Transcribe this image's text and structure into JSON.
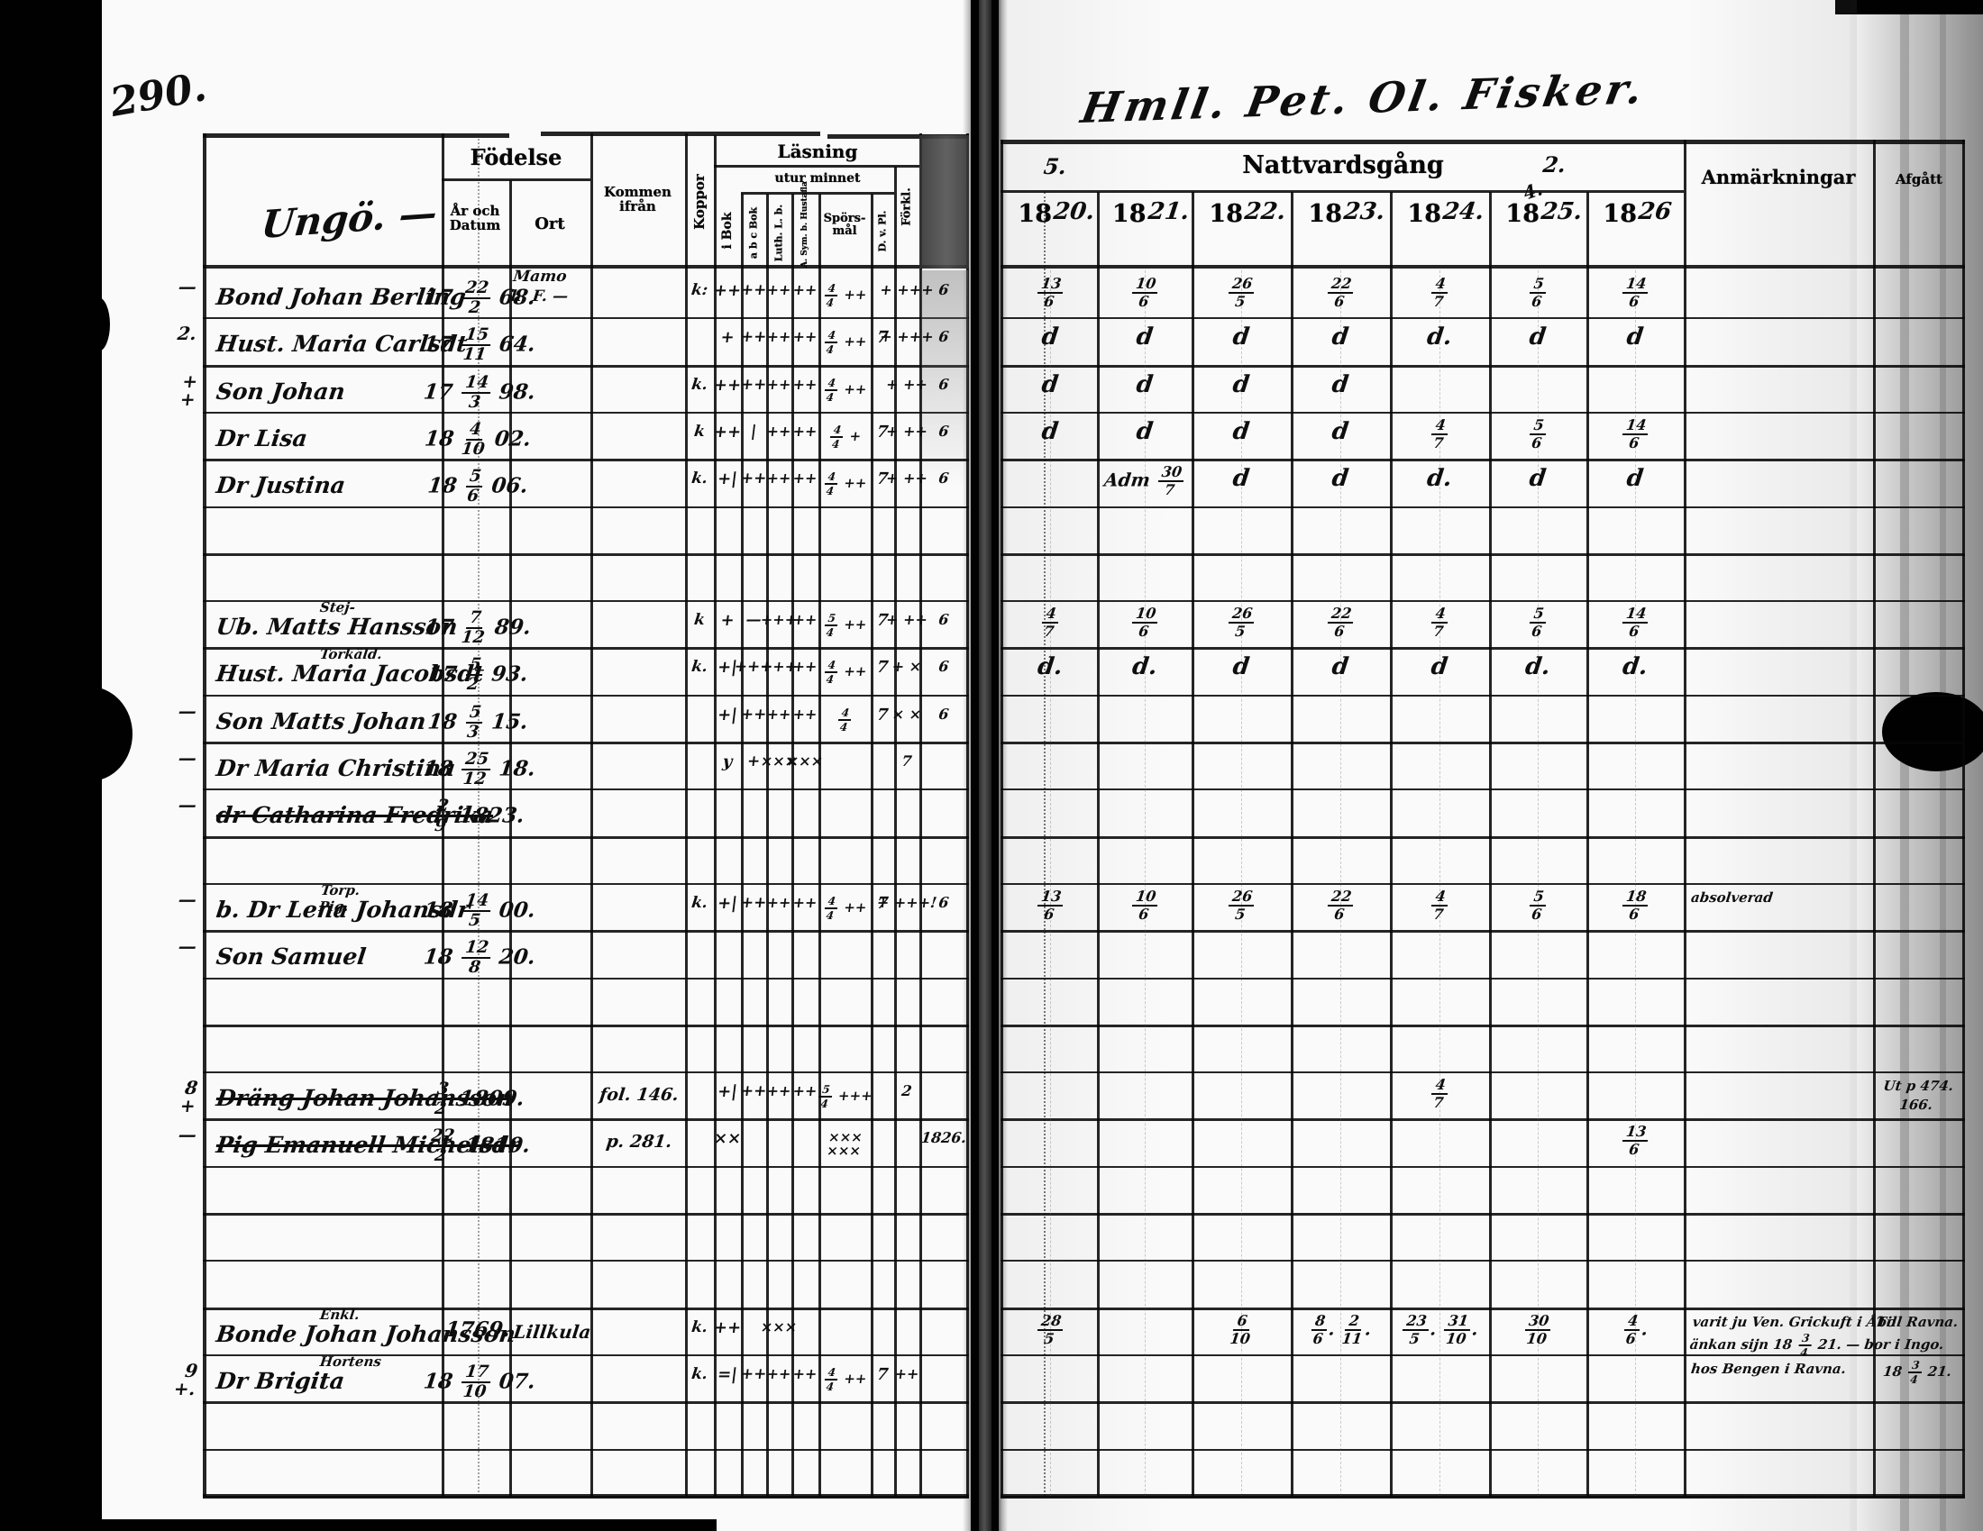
{
  "page": {
    "number": "290.",
    "left_heading": "Ungö. —",
    "right_heading": "Hmll. Pet. Ol. Fisker."
  },
  "ink_color": "#0d0c0a",
  "paper_color": "#f7f5ef",
  "left_table": {
    "headers": {
      "fodelse": "Födelse",
      "ar_och_datum": "År och\nDatum",
      "ort": "Ort",
      "kommen_ifran": "Kommen\nifrån",
      "koppor": "Koppor",
      "lasning": "Läsning",
      "utur_minnet": "utur minnet",
      "i_bok": "i Bok",
      "abc_bok": "a b c Bok",
      "luth": "Luth. L. b.",
      "asym": "A. Sym. b. Hustafla",
      "sporsmal": "Spörs-\nmål",
      "dvpl": "D. v. Pl.",
      "forkl": "Förkl."
    },
    "ort_note": "Mamo\nh. F. —",
    "rows": [
      {
        "margin": "—",
        "name": "Bond Johan Berling",
        "date": "17 22/2 68.",
        "marks": {
          "koppor": "k:",
          "ibok": "++",
          "abc": "++",
          "luth": "++",
          "asym": "++",
          "spors": "4/4 ++",
          "forkl": "+ +++",
          "shaded": "6"
        }
      },
      {
        "margin": "2.",
        "name": "Hust. Maria Carlsdt",
        "date": "17 15/11 64.",
        "marks": {
          "ibok": "+",
          "abc": "++",
          "luth": "++",
          "asym": "++",
          "spors": "4/4 ++",
          "dvpl": "7",
          "forkl": "+ +++",
          "shaded": "6"
        }
      },
      {
        "margin": "+\n+",
        "name": "Son Johan",
        "date": "17 14/3 98.",
        "marks": {
          "koppor": "k.",
          "ibok": "++",
          "abc": "++",
          "luth": "++",
          "asym": "++",
          "spors": "4/4 ++",
          "forkl": "+ ++",
          "shaded": "6"
        }
      },
      {
        "name": "Dr Lisa",
        "date": "18 4/10 02.",
        "marks": {
          "koppor": "k",
          "ibok": "++",
          "abc": "|",
          "luth": "++",
          "asym": "++",
          "spors": "4/4 +",
          "dvpl": "7",
          "forkl": "+ ++",
          "shaded": "6"
        }
      },
      {
        "name": "Dr Justina",
        "date": "18 5/6 06.",
        "marks": {
          "koppor": "k.",
          "ibok": "+|",
          "abc": "++",
          "luth": "++",
          "asym": "++",
          "spors": "4/4 ++",
          "dvpl": "7",
          "forkl": "+ ++",
          "shaded": "6"
        }
      },
      {},
      {},
      {
        "name": "Ub. Matts Hansson",
        "super": "Stej-",
        "date": "17 7/12 89.",
        "marks": {
          "koppor": "k",
          "ibok": "+",
          "abc": "—",
          "luth": "+++",
          "asym": "++",
          "spors": "5/4 ++",
          "dvpl": "7",
          "forkl": "+ ++",
          "shaded": "6"
        }
      },
      {
        "name": "Hust. Maria Jacobsdt",
        "super": "Torkäld.",
        "date": "17 5/2 93.",
        "marks": {
          "koppor": "k.",
          "ibok": "+|",
          "abc": "+++",
          "luth": "+++",
          "asym": "++",
          "spors": "4/4 ++",
          "dvpl": "7",
          "forkl": "+ ×",
          "shaded": "6"
        }
      },
      {
        "margin": "—",
        "name": "Son Matts Johan",
        "date": "18 5/3 15.",
        "marks": {
          "ibok": "+|",
          "abc": "++",
          "luth": "++",
          "asym": "++",
          "spors": "4/4",
          "dvpl": "7",
          "forkl": "× ×",
          "shaded": "6"
        }
      },
      {
        "margin": "—",
        "name": "Dr Maria Christina",
        "date": "18 25/12 18.",
        "marks": {
          "ibok": "y",
          "abc": "+",
          "luth": "×××",
          "asym": "×××",
          "forkl": "7"
        }
      },
      {
        "margin": "—",
        "name": "dr Catharina Fredrika",
        "struck": true,
        "date": "2/9 1823."
      },
      {},
      {
        "margin": "—",
        "name": "b. Dr Lena Johansdr",
        "super": "Torp. Pig.",
        "date": "18 14/5 00.",
        "marks": {
          "koppor": "k.",
          "ibok": "+|",
          "abc": "++",
          "luth": "++",
          "asym": "++",
          "spors": "4/4 ++",
          "dvpl": "7",
          "forkl": "+ +++!",
          "shaded": "6"
        }
      },
      {
        "margin": "—",
        "name": "Son Samuel",
        "date": "18 12/8 20."
      },
      {},
      {},
      {
        "margin": "8\n+",
        "name": "Dräng Johan Johansson",
        "struck": true,
        "date": "3/2 1809.",
        "kommen": "fol. 146.",
        "marks": {
          "ibok": "+|",
          "abc": "++",
          "luth": "++",
          "asym": "++",
          "spors": "5/4 +++",
          "forkl": "2"
        }
      },
      {
        "margin": "—",
        "name": "Pig Emanuell Michelsdr",
        "struck": true,
        "date": "22/2 1810.",
        "kommen": "p. 281.",
        "marks": {
          "ibok": "××",
          "spors": "×××\n×××",
          "shaded": "1826."
        }
      },
      {},
      {},
      {},
      {
        "name": "Bonde Johan Johansson",
        "super": "Enkl.",
        "date": "1769.",
        "ort": "Lillkula",
        "marks": {
          "koppor": "k.",
          "ibok": "++",
          "luth": "×××"
        }
      },
      {
        "margin": "9\n+.",
        "name": "Dr Brigita",
        "super": "Hortens",
        "date": "18 17/10 07.",
        "marks": {
          "koppor": "k.",
          "ibok": "=|",
          "abc": "++",
          "luth": "++",
          "asym": "++",
          "spors": "4/4 ++",
          "dvpl": "7",
          "forkl": "++"
        }
      },
      {},
      {}
    ]
  },
  "right_table": {
    "headers": {
      "nattvardsgang": "Nattvardsgång",
      "year_printed": "18",
      "year_scripts": [
        "20.",
        "21.",
        "22.",
        "23.",
        "24.",
        "25.",
        "26"
      ],
      "anmarkningar": "Anmärkningar",
      "afgatt": "Afgått"
    },
    "scribbles": {
      "left_mark": "5.",
      "right_mark": "2.",
      "corner_mark": "4."
    },
    "rows": [
      {
        "years": [
          "13/6",
          "10/6",
          "26/5",
          "22/6",
          "4/7",
          "5/6",
          "14/6"
        ]
      },
      {
        "years": [
          "d",
          "d",
          "d",
          "d",
          "d.",
          "d",
          "d"
        ]
      },
      {
        "years": [
          "d",
          "d",
          "d",
          "d",
          "",
          "",
          ""
        ]
      },
      {
        "years": [
          "d",
          "d",
          "d",
          "d",
          "4/7",
          "5/6",
          "14/6"
        ]
      },
      {
        "years": [
          "",
          "Adm 30/7",
          "d",
          "d",
          "d.",
          "d",
          "d"
        ]
      },
      {},
      {},
      {
        "years": [
          "4/7",
          "10/6",
          "26/5",
          "22/6",
          "4/7",
          "5/6",
          "14/6"
        ]
      },
      {
        "years": [
          "d.",
          "d.",
          "d",
          "d",
          "d",
          "d.",
          "d."
        ]
      },
      {},
      {},
      {},
      {},
      {
        "years": [
          "13/6",
          "10/6",
          "26/5",
          "22/6",
          "4/7",
          "5/6",
          "18/6"
        ],
        "anm": "absolverad"
      },
      {},
      {},
      {},
      {
        "years": [
          "",
          "",
          "",
          "",
          "4/7",
          "",
          ""
        ],
        "afgatt": "Ut p 474.\n166."
      },
      {
        "years": [
          "",
          "",
          "",
          "",
          "",
          "",
          "13/6"
        ]
      },
      {},
      {},
      {},
      {
        "years": [
          "28/5",
          "",
          "6/10",
          "8/6. 2/11.",
          "23/5. 31/10.",
          "30/10",
          "4/6."
        ],
        "anm": "varit ju Ven. Grickuft i Åbo\nänkan sijn 18 3/4 21. — bor i Ingo.",
        "afgatt": "Till Ravna."
      },
      {
        "anm": "hos Bengen i Ravna.",
        "afgatt": "18 3/4 21."
      },
      {},
      {}
    ]
  }
}
